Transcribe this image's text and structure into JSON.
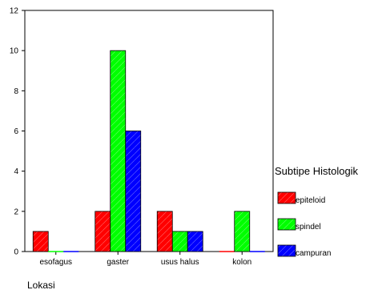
{
  "chart_data": {
    "type": "bar",
    "categories": [
      "esofagus",
      "gaster",
      "usus halus",
      "kolon"
    ],
    "series": [
      {
        "name": "epiteloid",
        "values": [
          1,
          2,
          2,
          0
        ],
        "color": "#ff0000"
      },
      {
        "name": "spindel",
        "values": [
          0,
          10,
          1,
          2
        ],
        "color": "#00ff00"
      },
      {
        "name": "campuran",
        "values": [
          0,
          6,
          1,
          0
        ],
        "color": "#0000ff"
      }
    ],
    "ylim": [
      0,
      12
    ],
    "yticks": [
      0,
      2,
      4,
      6,
      8,
      10,
      12
    ],
    "xlabel": "Lokasi",
    "ylabel": "",
    "title": "",
    "legend": {
      "title": "Subtipe Histologik",
      "position": "right"
    },
    "grid": false
  }
}
